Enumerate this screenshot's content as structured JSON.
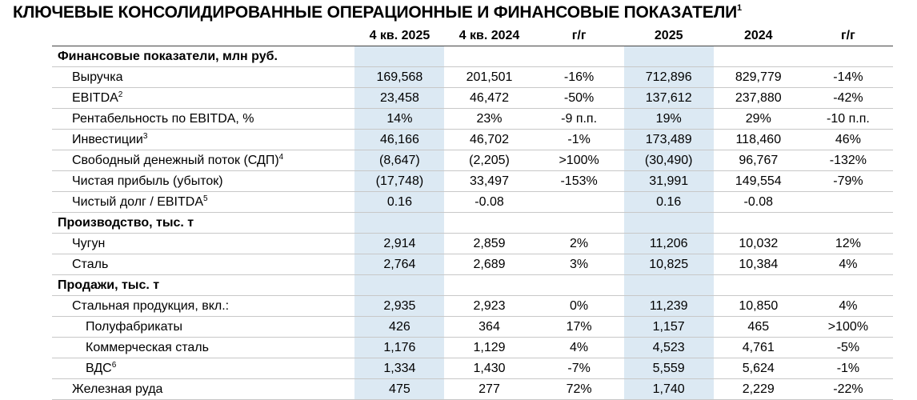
{
  "title": "КЛЮЧЕВЫЕ КОНСОЛИДИРОВАННЫЕ ОПЕРАЦИОННЫЕ И ФИНАНСОВЫЕ ПОКАЗАТЕЛИ",
  "title_note": "1",
  "columns": [
    "4 кв. 2025",
    "4 кв. 2024",
    "г/г",
    "2025",
    "2024",
    "г/г"
  ],
  "sections": [
    {
      "title": "Финансовые показатели, млн руб.",
      "rows": [
        {
          "label": "Выручка",
          "values": [
            "169,568",
            "201,501",
            "-16%",
            "712,896",
            "829,779",
            "-14%"
          ]
        },
        {
          "label": "EBITDA",
          "note": "2",
          "values": [
            "23,458",
            "46,472",
            "-50%",
            "137,612",
            "237,880",
            "-42%"
          ]
        },
        {
          "label": "Рентабельность по EBITDA, %",
          "values": [
            "14%",
            "23%",
            "-9 п.п.",
            "19%",
            "29%",
            "-10 п.п."
          ]
        },
        {
          "label": "Инвестиции",
          "note": "3",
          "values": [
            "46,166",
            "46,702",
            "-1%",
            "173,489",
            "118,460",
            "46%"
          ]
        },
        {
          "label": "Свободный денежный поток (СДП)",
          "note": "4",
          "values": [
            "(8,647)",
            "(2,205)",
            ">100%",
            "(30,490)",
            "96,767",
            "-132%"
          ]
        },
        {
          "label": "Чистая прибыль (убыток)",
          "values": [
            "(17,748)",
            "33,497",
            "-153%",
            "31,991",
            "149,554",
            "-79%"
          ]
        },
        {
          "label": "Чистый долг / EBITDA",
          "note": "5",
          "values": [
            "0.16",
            "-0.08",
            null,
            "0.16",
            "-0.08",
            null
          ]
        }
      ]
    },
    {
      "title": "Производство, тыс. т",
      "rows": [
        {
          "label": "Чугун",
          "values": [
            "2,914",
            "2,859",
            "2%",
            "11,206",
            "10,032",
            "12%"
          ]
        },
        {
          "label": "Сталь",
          "values": [
            "2,764",
            "2,689",
            "3%",
            "10,825",
            "10,384",
            "4%"
          ]
        }
      ]
    },
    {
      "title": "Продажи, тыс. т",
      "rows": [
        {
          "label": "Стальная продукция, вкл.:",
          "values": [
            "2,935",
            "2,923",
            "0%",
            "11,239",
            "10,850",
            "4%"
          ],
          "items": [
            {
              "label": "Полуфабрикаты",
              "values": [
                "426",
                "364",
                "17%",
                "1,157",
                "465",
                ">100%"
              ]
            },
            {
              "label": "Коммерческая сталь",
              "values": [
                "1,176",
                "1,129",
                "4%",
                "4,523",
                "4,761",
                "-5%"
              ]
            },
            {
              "label": "ВДС",
              "note": "6",
              "values": [
                "1,334",
                "1,430",
                "-7%",
                "5,559",
                "5,624",
                "-1%"
              ]
            }
          ]
        },
        {
          "label": "Железная руда",
          "values": [
            "475",
            "277",
            "72%",
            "1,740",
            "2,229",
            "-22%"
          ]
        }
      ]
    }
  ]
}
